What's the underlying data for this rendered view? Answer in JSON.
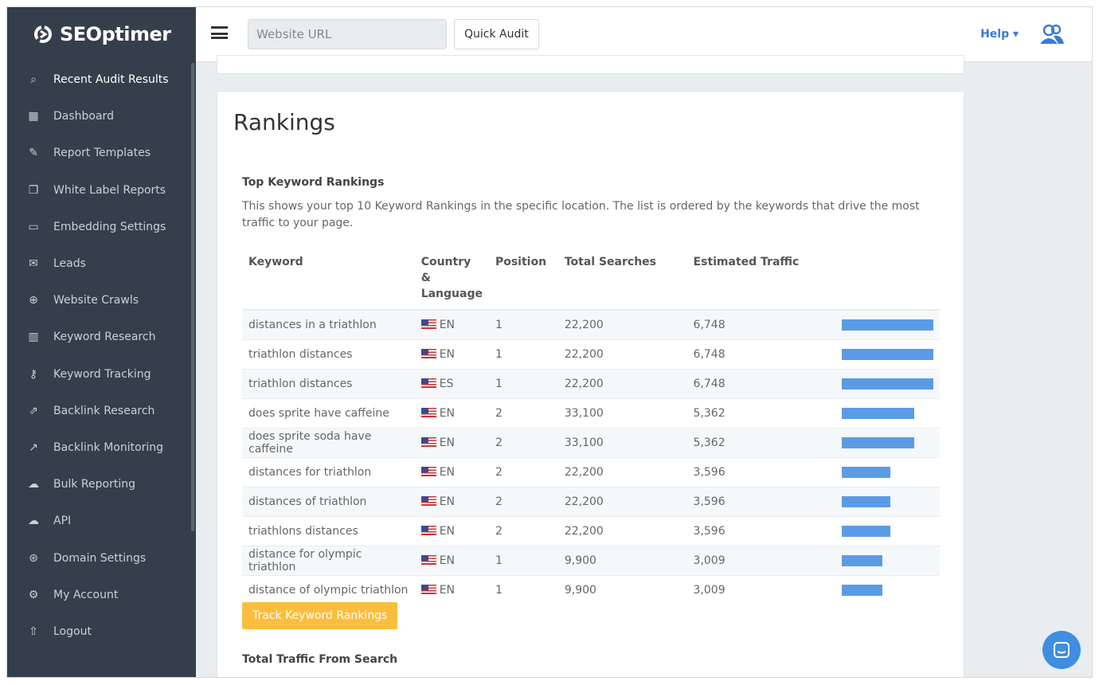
{
  "brand": "SEOptimer",
  "sidebar": {
    "items": [
      {
        "label": "Recent Audit Results",
        "icon": "⌕"
      },
      {
        "label": "Dashboard",
        "icon": "▦"
      },
      {
        "label": "Report Templates",
        "icon": "✎"
      },
      {
        "label": "White Label Reports",
        "icon": "❐"
      },
      {
        "label": "Embedding Settings",
        "icon": "▭"
      },
      {
        "label": "Leads",
        "icon": "✉"
      },
      {
        "label": "Website Crawls",
        "icon": "⊕"
      },
      {
        "label": "Keyword Research",
        "icon": "▥"
      },
      {
        "label": "Keyword Tracking",
        "icon": "⚷"
      },
      {
        "label": "Backlink Research",
        "icon": "⇗"
      },
      {
        "label": "Backlink Monitoring",
        "icon": "↗"
      },
      {
        "label": "Bulk Reporting",
        "icon": "☁"
      },
      {
        "label": "API",
        "icon": "☁"
      },
      {
        "label": "Domain Settings",
        "icon": "⊛"
      },
      {
        "label": "My Account",
        "icon": "⚙"
      },
      {
        "label": "Logout",
        "icon": "⇧"
      }
    ]
  },
  "header": {
    "url_placeholder": "Website URL",
    "quick_audit": "Quick Audit",
    "help": "Help ▾"
  },
  "main": {
    "title": "Rankings",
    "section_title": "Top Keyword Rankings",
    "description": "This shows your top 10 Keyword Rankings in the specific location. The list is ordered by the keywords that drive the most traffic to your page.",
    "columns": [
      "Keyword",
      "Country & Language",
      "Position",
      "Total Searches",
      "Estimated Traffic"
    ],
    "rows": [
      {
        "keyword": "distances in a triathlon",
        "lang": "EN",
        "position": "1",
        "searches": "22,200",
        "traffic": "6,748",
        "traffic_value": 6748
      },
      {
        "keyword": "triathlon distances",
        "lang": "EN",
        "position": "1",
        "searches": "22,200",
        "traffic": "6,748",
        "traffic_value": 6748
      },
      {
        "keyword": "triathlon distances",
        "lang": "ES",
        "position": "1",
        "searches": "22,200",
        "traffic": "6,748",
        "traffic_value": 6748
      },
      {
        "keyword": "does sprite have caffeine",
        "lang": "EN",
        "position": "2",
        "searches": "33,100",
        "traffic": "5,362",
        "traffic_value": 5362
      },
      {
        "keyword": "does sprite soda have caffeine",
        "lang": "EN",
        "position": "2",
        "searches": "33,100",
        "traffic": "5,362",
        "traffic_value": 5362
      },
      {
        "keyword": "distances for triathlon",
        "lang": "EN",
        "position": "2",
        "searches": "22,200",
        "traffic": "3,596",
        "traffic_value": 3596
      },
      {
        "keyword": "distances of triathlon",
        "lang": "EN",
        "position": "2",
        "searches": "22,200",
        "traffic": "3,596",
        "traffic_value": 3596
      },
      {
        "keyword": "triathlons distances",
        "lang": "EN",
        "position": "2",
        "searches": "22,200",
        "traffic": "3,596",
        "traffic_value": 3596
      },
      {
        "keyword": "distance for olympic triathlon",
        "lang": "EN",
        "position": "1",
        "searches": "9,900",
        "traffic": "3,009",
        "traffic_value": 3009
      },
      {
        "keyword": "distance of olympic triathlon",
        "lang": "EN",
        "position": "1",
        "searches": "9,900",
        "traffic": "3,009",
        "traffic_value": 3009
      }
    ],
    "track_button": "Track Keyword Rankings",
    "section2_title": "Total Traffic From Search"
  },
  "colors": {
    "sidebar": "#353f4b",
    "bar": "#5b9be6",
    "accent": "#fbbd3f",
    "link": "#3a7bd5"
  }
}
